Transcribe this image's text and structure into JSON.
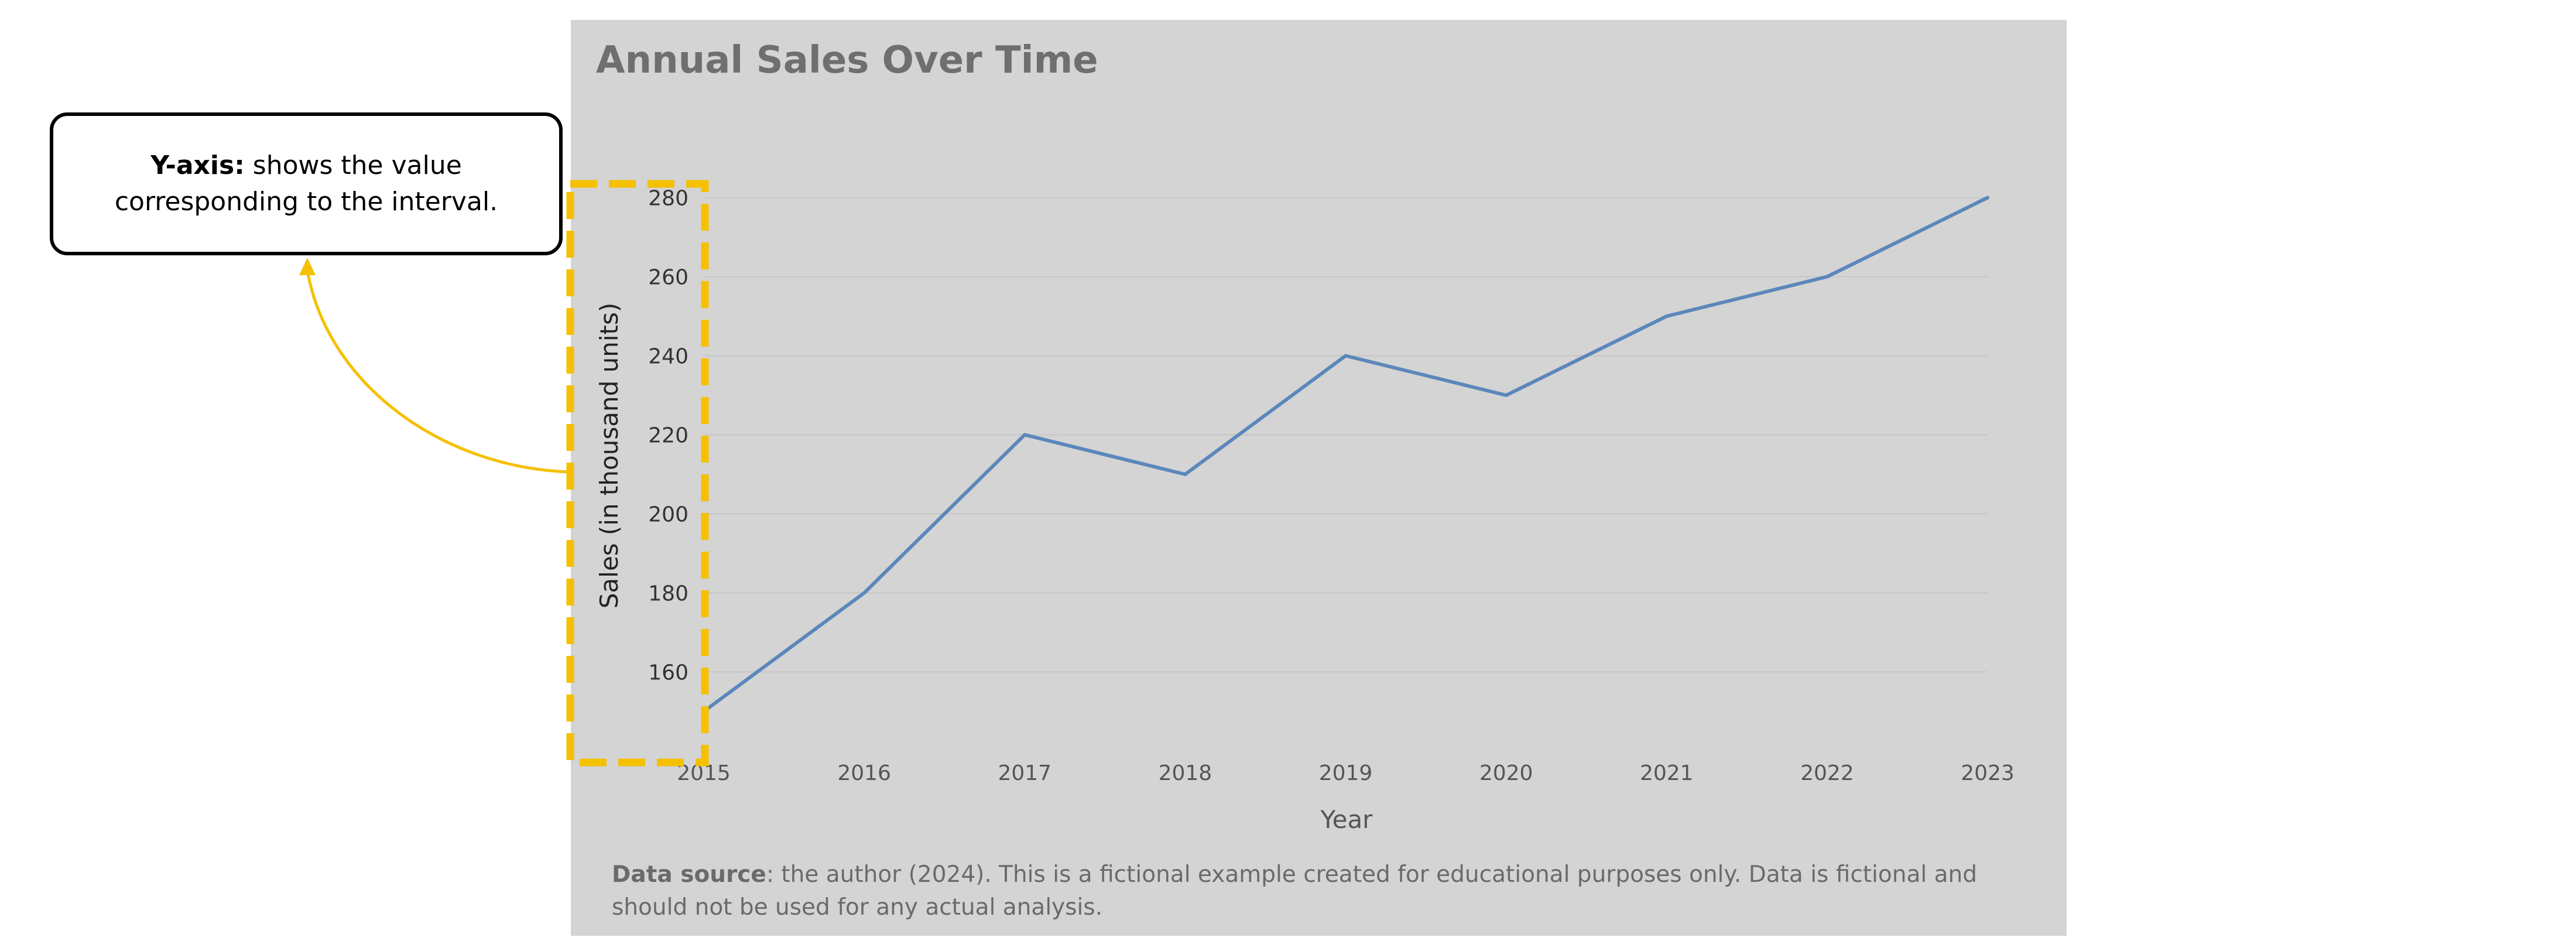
{
  "chart_data": {
    "type": "line",
    "title": "Annual Sales Over Time",
    "xlabel": "Year",
    "ylabel": "Sales (in thousand units)",
    "x": [
      2015,
      2016,
      2017,
      2018,
      2019,
      2020,
      2021,
      2022,
      2023
    ],
    "values": [
      150,
      180,
      220,
      210,
      240,
      230,
      250,
      260,
      280
    ],
    "ylim": [
      140,
      285
    ],
    "yticks": [
      160,
      180,
      200,
      220,
      240,
      260,
      280
    ],
    "grid": "horizontal",
    "line_color": "#5b87bb"
  },
  "source_note": {
    "label": "Data source",
    "text": ": the author (2024). This is a fictional example created for educational purposes only. Data is fictional and should not be used for any actual analysis."
  },
  "annotation": {
    "bold": "Y-axis:",
    "text": " shows the value corresponding to the interval.",
    "highlight_color": "#f5c000"
  }
}
